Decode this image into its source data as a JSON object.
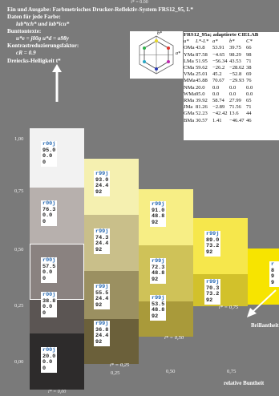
{
  "header": {
    "top_label": "i* = 0.00",
    "title": "Ein und Ausgabe: Farbmetrisches Drucker-Reflektiv-System FRS12_95, L*",
    "line2": "Daten für jede Farbe:",
    "line3": "lab*tch* und lab*icu*",
    "line4": "Bunttontexte:",
    "line5": "u*e = j00g   u*d = o98y",
    "line6": "Kontrastreduzierungsfaktor:",
    "line7": "cR = 0.9",
    "line8": "Dreiecks-Helligkeit t*"
  },
  "y_axis": [
    "1,00",
    "0,75",
    "0,50",
    "0,25",
    "0,00"
  ],
  "x_axis": [
    "0,25",
    "0,50",
    "0,75",
    "relative Buntheit"
  ],
  "istep_labels": [
    "i* = 0,25",
    "i* = 0,50",
    "i* = 0,75",
    "i* = 0,00"
  ],
  "bright_label": "Brillantheit",
  "hexagon": {
    "top": "b*",
    "right": "a*",
    "bottom": "−b*",
    "left": "−a*"
  },
  "table": {
    "title": "FRS12_95a; adaptierte CIELAB",
    "header": [
      "u*",
      "L*-L*",
      "a*",
      "b*",
      "C*"
    ],
    "rows": [
      [
        "OMa",
        "43.8",
        "53.91",
        "39.75",
        "66"
      ],
      [
        "YMa",
        "87.58",
        "−4.65",
        "98.29",
        "98"
      ],
      [
        "LMa",
        "51.95",
        "−56.34",
        "43.53",
        "71"
      ],
      [
        "CMa",
        "59.62",
        "−26.2",
        "−28.62",
        "38"
      ],
      [
        "VMa",
        "25.01",
        "45.2",
        "−52.8",
        "69"
      ],
      [
        "MMa",
        "45.88",
        "70.67",
        "−29.93",
        "76"
      ],
      [
        "NMa",
        "20.0",
        "0.0",
        "0.0",
        "0.0"
      ],
      [
        "WMa",
        "95.0",
        "0.0",
        "0.0",
        "0.0"
      ],
      [
        "RMa",
        "39.92",
        "58.74",
        "27.99",
        "65"
      ],
      [
        "JMa",
        "81.26",
        "−2.89",
        "71.56",
        "71"
      ],
      [
        "GMa",
        "52.23",
        "−42.42",
        "13.6",
        "44"
      ],
      [
        "BMa",
        "30.57",
        "1.41",
        "−46.47",
        "46"
      ]
    ]
  },
  "cells": [
    {
      "id": "r00j",
      "v": [
        "95.0",
        "0.0",
        "0"
      ]
    },
    {
      "id": "r00j",
      "v": [
        "76.3",
        "0.0",
        "0"
      ]
    },
    {
      "id": "r00j",
      "v": [
        "57.5",
        "0.0",
        "0"
      ]
    },
    {
      "id": "r00j",
      "v": [
        "38.8",
        "0.0",
        "0"
      ]
    },
    {
      "id": "r00j",
      "v": [
        "20.0",
        "0.0",
        "0"
      ]
    },
    {
      "id": "r99j",
      "v": [
        "93.0",
        "24.4",
        "92"
      ]
    },
    {
      "id": "r99j",
      "v": [
        "74.3",
        "24.4",
        "92"
      ]
    },
    {
      "id": "r99j",
      "v": [
        "55.5",
        "24.4",
        "92"
      ]
    },
    {
      "id": "r99j",
      "v": [
        "36.8",
        "24.4",
        "92"
      ]
    },
    {
      "id": "r99j",
      "v": [
        "91.0",
        "48.8",
        "92"
      ]
    },
    {
      "id": "r99j",
      "v": [
        "72.3",
        "48.8",
        "92"
      ]
    },
    {
      "id": "r99j",
      "v": [
        "53.5",
        "48.8",
        "92"
      ]
    },
    {
      "id": "r99j",
      "v": [
        "89.0",
        "73.2",
        "92"
      ]
    },
    {
      "id": "r99j",
      "v": [
        "70.3",
        "73.2",
        "92"
      ]
    },
    {
      "id": "r99j",
      "v": [
        "8",
        "9",
        "9"
      ]
    }
  ],
  "colors": {
    "background": "#7a7a7a",
    "accent_code": "#2a6bb3"
  }
}
